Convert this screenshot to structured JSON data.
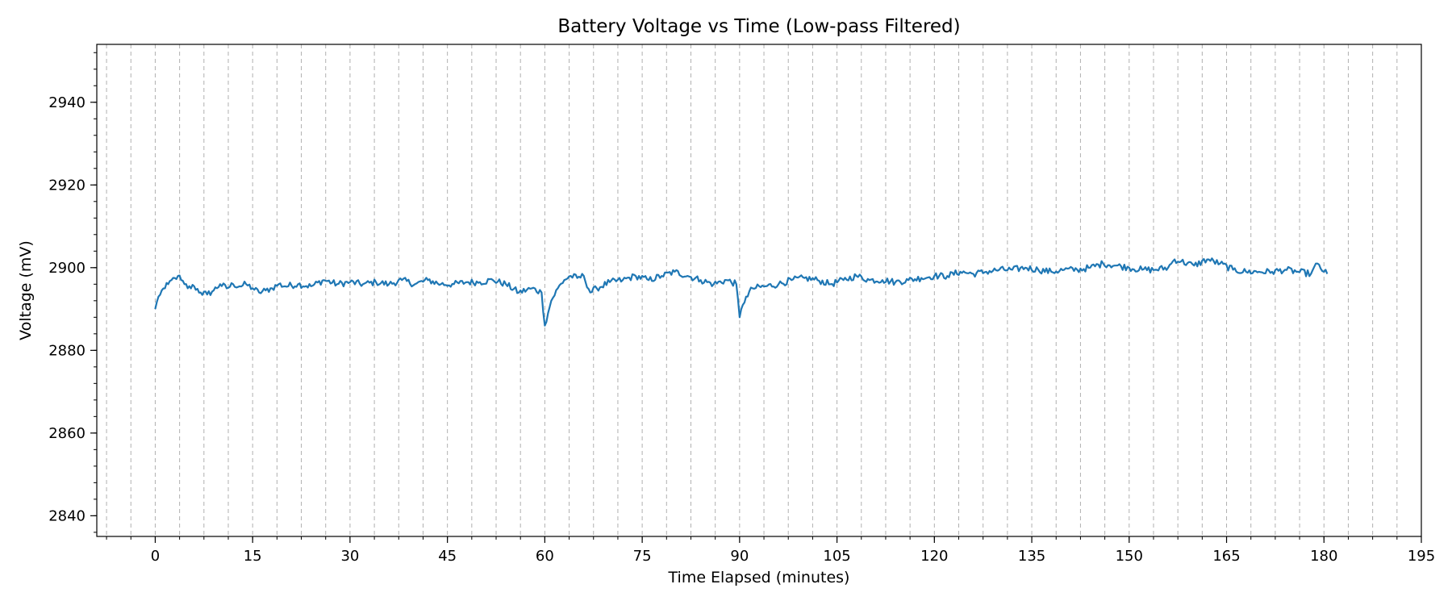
{
  "chart_data": {
    "type": "line",
    "title": "Battery Voltage vs Time (Low-pass Filtered)",
    "xlabel": "Time Elapsed (minutes)",
    "ylabel": "Voltage (mV)",
    "xlim": [
      -9,
      195
    ],
    "ylim": [
      2835,
      2954
    ],
    "x_ticks": [
      0,
      15,
      30,
      45,
      60,
      75,
      90,
      105,
      120,
      135,
      150,
      165,
      180,
      195
    ],
    "x_minor_step": 3.75,
    "y_ticks": [
      2840,
      2860,
      2880,
      2900,
      2920,
      2940
    ],
    "y_minor_step": 4,
    "grid": "vertical dashed at minor x ticks",
    "legend": "none",
    "line_color": "#1f77b4",
    "series": [
      {
        "x": [
          0,
          0.5,
          1,
          1.5,
          2,
          2.5,
          3,
          3.5,
          4,
          4.5,
          5,
          6,
          7,
          8,
          9,
          10,
          11,
          12,
          13,
          14,
          15,
          16,
          17,
          18,
          19,
          20,
          22,
          24,
          26,
          28,
          30,
          32,
          34,
          36,
          38,
          40,
          42,
          44,
          46,
          48,
          50,
          52,
          54,
          56,
          58,
          59.5,
          60,
          60.5,
          61,
          62,
          63,
          64,
          65,
          66,
          67,
          68,
          70,
          72,
          74,
          76,
          78,
          80,
          82,
          84,
          86,
          88,
          89.5,
          90,
          90.5,
          91,
          92,
          94,
          96,
          98,
          100,
          102,
          104,
          106,
          108,
          110,
          112,
          114,
          116,
          118,
          120,
          122,
          124,
          126,
          128,
          130,
          132,
          134,
          136,
          138,
          140,
          142,
          144,
          146,
          148,
          150,
          152,
          154,
          156,
          157,
          158,
          160,
          162,
          164,
          166,
          168,
          170,
          172,
          174,
          176,
          178,
          179,
          180,
          180.5
        ],
        "y": [
          2890,
          2893,
          2894.5,
          2895,
          2896,
          2897,
          2897.5,
          2898,
          2897,
          2896,
          2895,
          2895.5,
          2894,
          2893.5,
          2894.5,
          2896,
          2895,
          2896,
          2895.5,
          2896,
          2895,
          2894,
          2894.5,
          2895,
          2896,
          2895.5,
          2896,
          2895.5,
          2897,
          2896,
          2896.5,
          2896,
          2896.5,
          2896,
          2897,
          2896,
          2897,
          2896,
          2896,
          2896.5,
          2896.5,
          2897,
          2896,
          2894,
          2895,
          2894,
          2886,
          2889,
          2892,
          2895,
          2897,
          2898,
          2897.5,
          2898,
          2894,
          2895,
          2896.5,
          2897,
          2898,
          2897,
          2898,
          2899,
          2898,
          2897,
          2896,
          2897,
          2896,
          2888,
          2891,
          2893,
          2895,
          2895.5,
          2896,
          2897,
          2897.5,
          2897,
          2896,
          2897,
          2898,
          2897,
          2897,
          2896.5,
          2897,
          2897.5,
          2898,
          2898,
          2899,
          2898.5,
          2899,
          2899.5,
          2899.5,
          2900,
          2899.5,
          2899,
          2899.5,
          2899.5,
          2900,
          2901,
          2900.5,
          2900,
          2899.5,
          2899.5,
          2900,
          2902,
          2901.5,
          2900.5,
          2902,
          2901,
          2899.5,
          2899,
          2899,
          2899,
          2899.5,
          2899,
          2898.5,
          2901,
          2899,
          2898.5
        ]
      }
    ]
  }
}
